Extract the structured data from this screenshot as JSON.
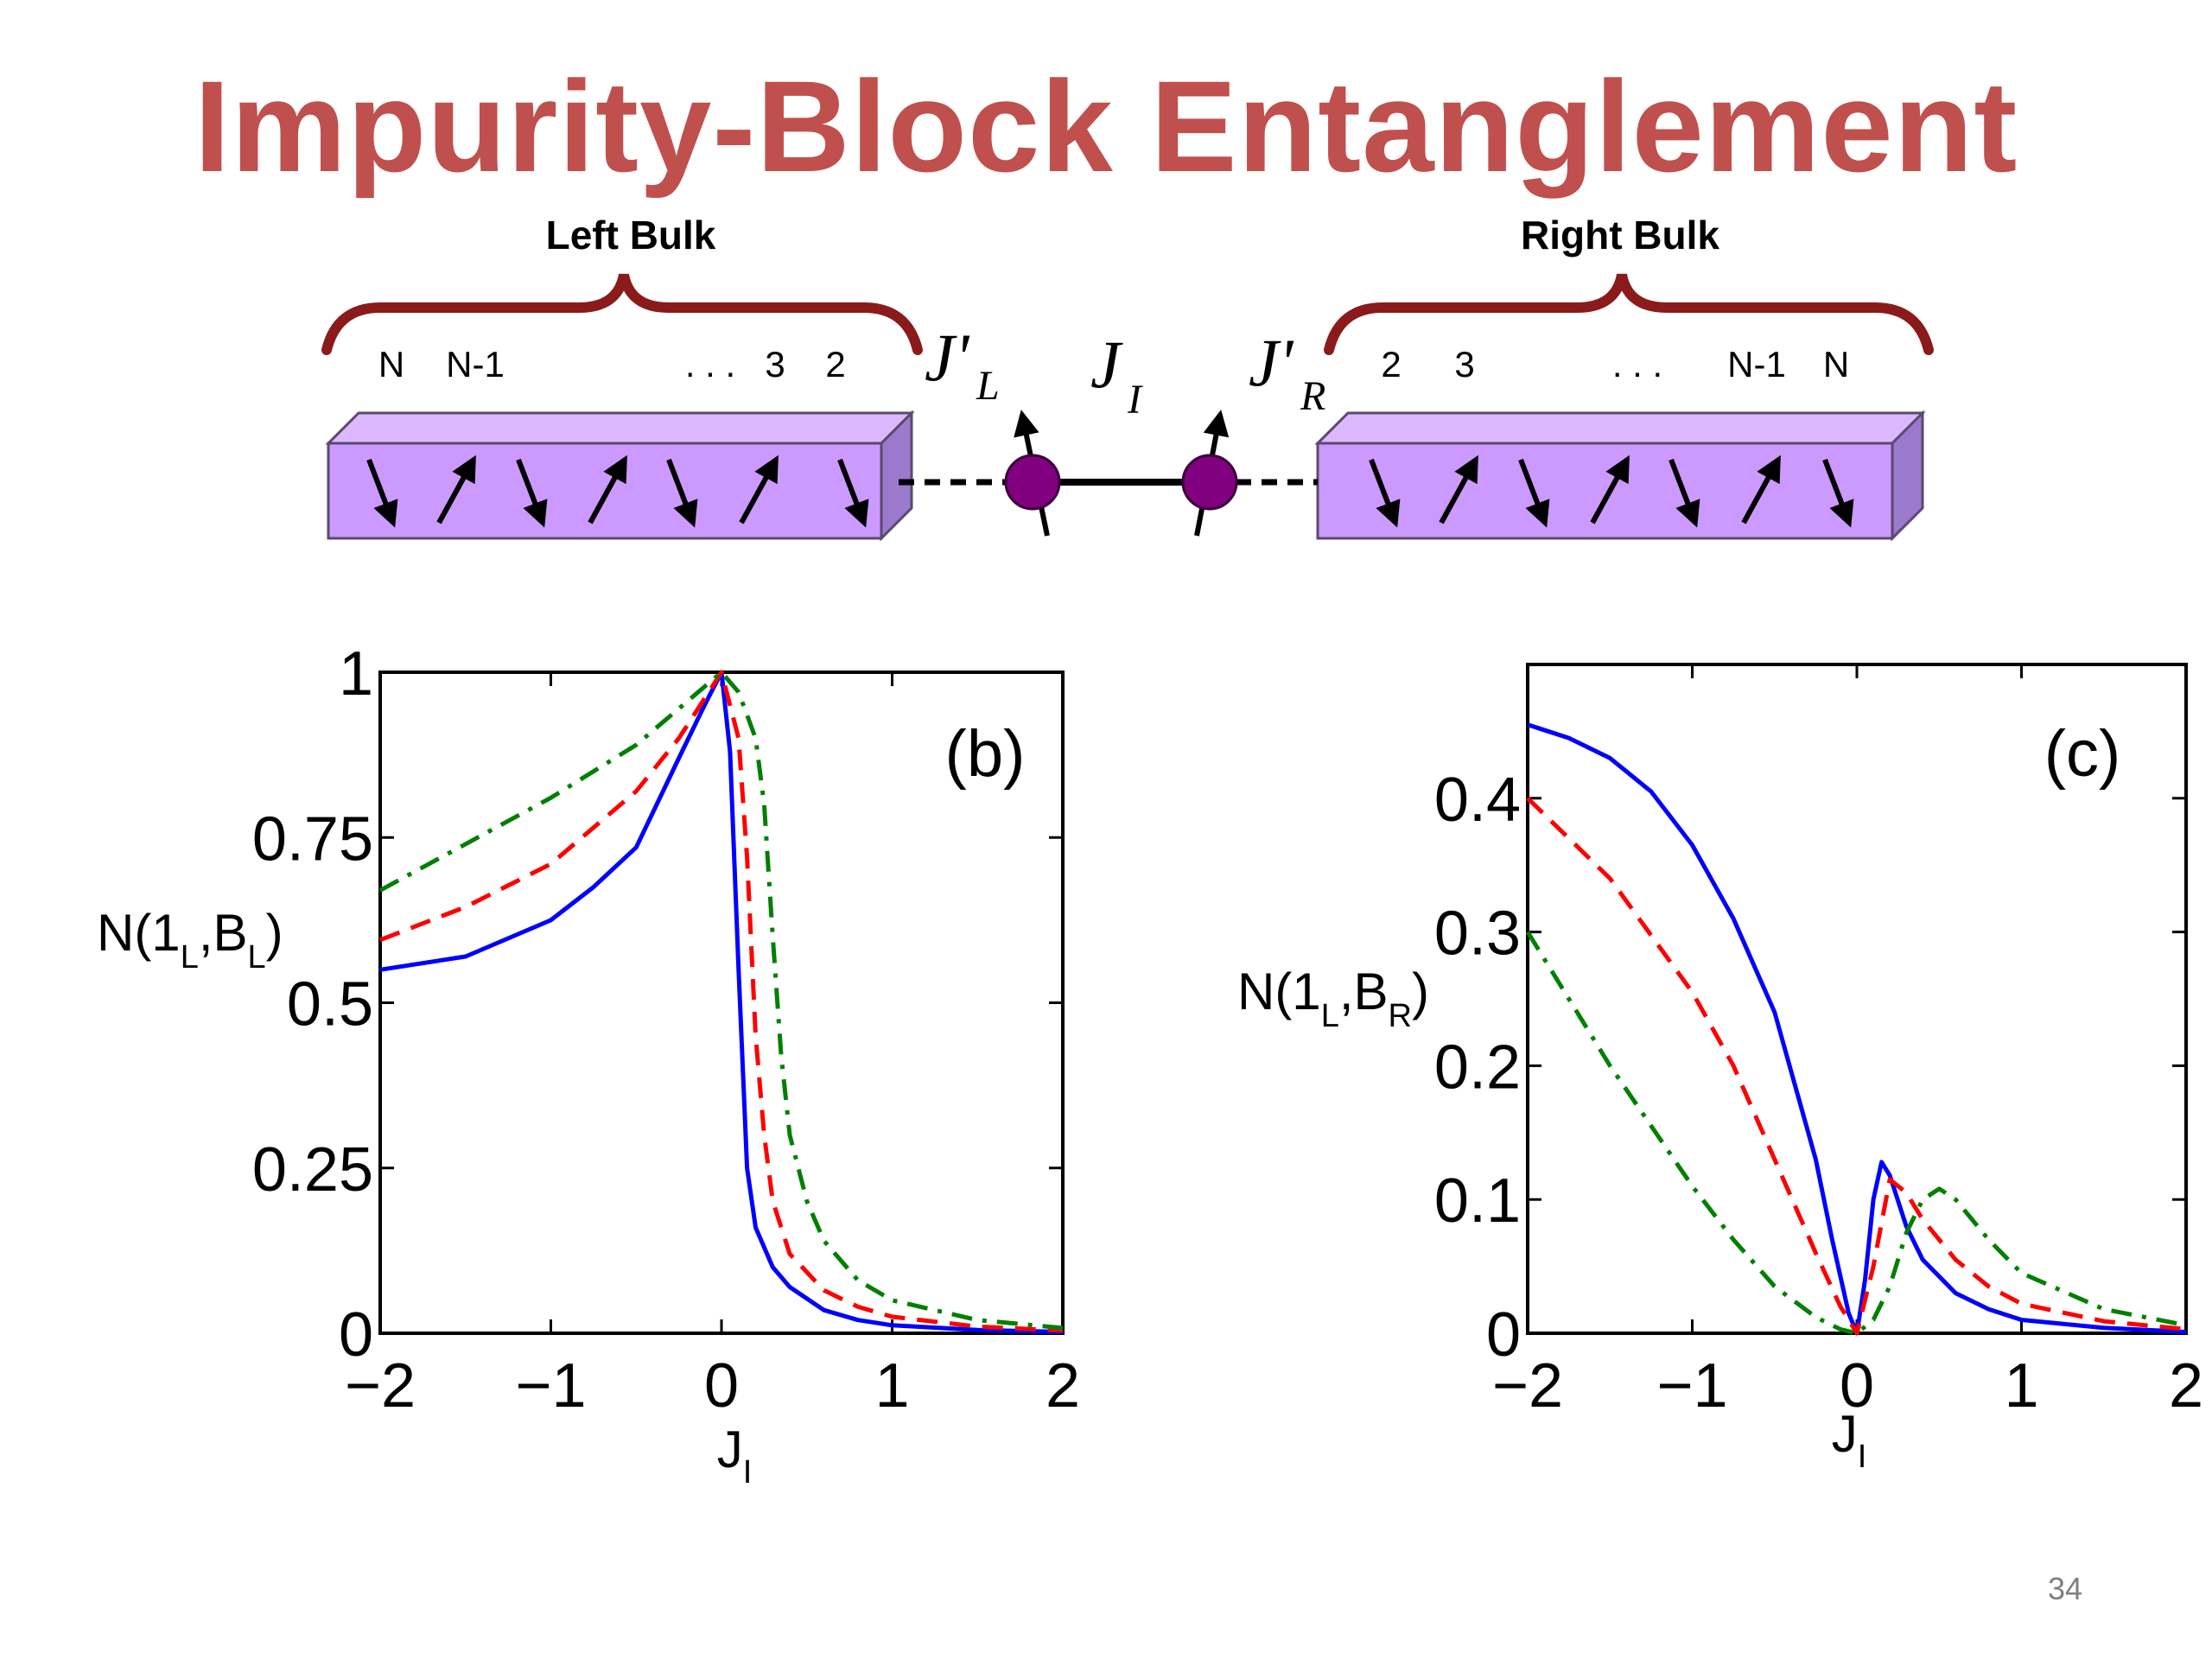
{
  "slide": {
    "title": "Impurity-Block Entanglement",
    "page_number": "34"
  },
  "diagram": {
    "left_bulk": {
      "title": "Left Bulk",
      "site_labels": [
        "N",
        "N-1",
        ". . .",
        "3",
        "2"
      ]
    },
    "right_bulk": {
      "title": "Right Bulk",
      "site_labels": [
        "2",
        "3",
        ". . .",
        "N-1",
        "N"
      ]
    },
    "couplings": {
      "left": {
        "main": "J'",
        "sub": "L"
      },
      "impurity": {
        "main": "J",
        "sub": "I"
      },
      "right": {
        "main": "J'",
        "sub": "R"
      }
    },
    "colors": {
      "bulk_face": "#cc99ff",
      "bulk_top": "#ddb8ff",
      "bulk_side": "#9b79cc",
      "brace": "#8b1a1a",
      "impurity_spin": "#800080"
    }
  },
  "chart_data": [
    {
      "type": "line",
      "panel_label": "(b)",
      "xlabel": {
        "main": "J",
        "sub": "I"
      },
      "ylabel": {
        "parts": [
          "N(1",
          "L",
          ",B",
          "L",
          ")"
        ]
      },
      "xlim": [
        -2,
        2
      ],
      "ylim": [
        0,
        1
      ],
      "xticks": [
        -2,
        -1,
        0,
        1,
        2
      ],
      "xtick_labels": [
        "−2",
        "−1",
        "0",
        "1",
        "2"
      ],
      "yticks": [
        0,
        0.25,
        0.5,
        0.75,
        1
      ],
      "ytick_labels": [
        "0",
        "0.25",
        "0.5",
        "0.75",
        "1"
      ],
      "series": [
        {
          "color": "#0000ff",
          "dash": "solid",
          "x": [
            -2,
            -1.5,
            -1,
            -0.75,
            -0.5,
            -0.25,
            -0.1,
            0,
            0.05,
            0.1,
            0.15,
            0.2,
            0.3,
            0.4,
            0.6,
            0.8,
            1.0,
            1.5,
            2.0
          ],
          "y": [
            0.55,
            0.57,
            0.625,
            0.675,
            0.735,
            0.87,
            0.95,
            1.0,
            0.88,
            0.55,
            0.25,
            0.16,
            0.1,
            0.07,
            0.035,
            0.02,
            0.012,
            0.005,
            0.002
          ]
        },
        {
          "color": "#ff0000",
          "dash": "dashed",
          "x": [
            -2,
            -1.5,
            -1,
            -0.5,
            -0.25,
            -0.1,
            0,
            0.1,
            0.15,
            0.2,
            0.25,
            0.3,
            0.4,
            0.6,
            0.8,
            1.0,
            1.5,
            2.0
          ],
          "y": [
            0.595,
            0.645,
            0.71,
            0.82,
            0.9,
            0.96,
            1.0,
            0.9,
            0.72,
            0.45,
            0.3,
            0.2,
            0.12,
            0.065,
            0.04,
            0.025,
            0.01,
            0.004
          ]
        },
        {
          "color": "#008000",
          "dash": "dashdot",
          "x": [
            -2,
            -1.5,
            -1,
            -0.5,
            -0.25,
            0,
            0.1,
            0.2,
            0.25,
            0.3,
            0.35,
            0.4,
            0.5,
            0.6,
            0.8,
            1.0,
            1.5,
            2.0
          ],
          "y": [
            0.67,
            0.74,
            0.81,
            0.89,
            0.945,
            1.0,
            0.97,
            0.9,
            0.8,
            0.6,
            0.42,
            0.3,
            0.2,
            0.14,
            0.08,
            0.05,
            0.02,
            0.008
          ]
        }
      ]
    },
    {
      "type": "line",
      "panel_label": "(c)",
      "xlabel": {
        "main": "J",
        "sub": "I"
      },
      "ylabel": {
        "parts": [
          "N(1",
          "L",
          ",B",
          "R",
          ")"
        ]
      },
      "xlim": [
        -2,
        2
      ],
      "ylim": [
        0,
        0.5
      ],
      "xticks": [
        -2,
        -1,
        0,
        1,
        2
      ],
      "xtick_labels": [
        "−2",
        "−1",
        "0",
        "1",
        "2"
      ],
      "yticks": [
        0,
        0.1,
        0.2,
        0.3,
        0.4
      ],
      "ytick_labels": [
        "0",
        "0.1",
        "0.2",
        "0.3",
        "0.4"
      ],
      "series": [
        {
          "color": "#0000ff",
          "dash": "solid",
          "x": [
            -2,
            -1.75,
            -1.5,
            -1.25,
            -1,
            -0.75,
            -0.5,
            -0.25,
            -0.15,
            -0.05,
            0,
            0.05,
            0.1,
            0.15,
            0.2,
            0.3,
            0.4,
            0.6,
            0.8,
            1.0,
            1.5,
            2.0
          ],
          "y": [
            0.455,
            0.445,
            0.43,
            0.405,
            0.365,
            0.31,
            0.24,
            0.13,
            0.07,
            0.015,
            0.0,
            0.04,
            0.1,
            0.128,
            0.118,
            0.08,
            0.055,
            0.03,
            0.018,
            0.01,
            0.004,
            0.001
          ]
        },
        {
          "color": "#ff0000",
          "dash": "dashed",
          "x": [
            -2,
            -1.5,
            -1,
            -0.75,
            -0.5,
            -0.25,
            -0.1,
            0,
            0.1,
            0.2,
            0.3,
            0.4,
            0.6,
            0.8,
            1.0,
            1.5,
            2.0
          ],
          "y": [
            0.4,
            0.34,
            0.255,
            0.2,
            0.13,
            0.06,
            0.02,
            0.0,
            0.05,
            0.115,
            0.105,
            0.085,
            0.055,
            0.035,
            0.022,
            0.009,
            0.003
          ]
        },
        {
          "color": "#008000",
          "dash": "dashdot",
          "x": [
            -2,
            -1.5,
            -1,
            -0.75,
            -0.5,
            -0.25,
            -0.1,
            0,
            0.1,
            0.2,
            0.3,
            0.4,
            0.5,
            0.6,
            0.8,
            1.0,
            1.5,
            2.0
          ],
          "y": [
            0.3,
            0.2,
            0.11,
            0.07,
            0.035,
            0.012,
            0.003,
            0.0,
            0.01,
            0.035,
            0.075,
            0.1,
            0.108,
            0.1,
            0.07,
            0.045,
            0.018,
            0.006
          ]
        }
      ]
    }
  ]
}
